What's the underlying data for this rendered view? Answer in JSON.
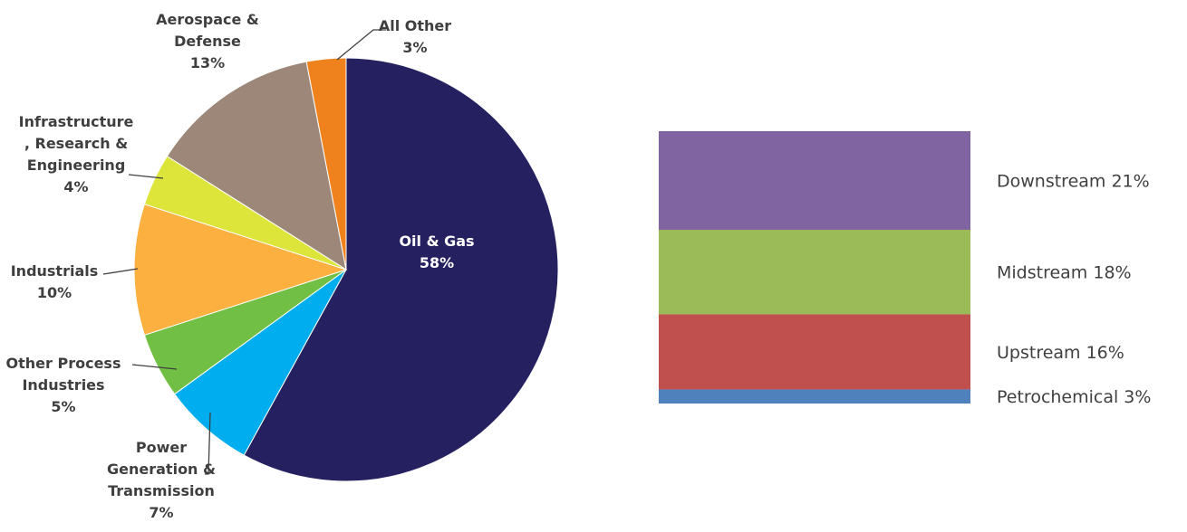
{
  "chart_data": [
    {
      "type": "pie",
      "slices": [
        {
          "name": "Oil & Gas",
          "value": 58,
          "label": "58%",
          "color": "#252060"
        },
        {
          "name": "Power Generation & Transmission",
          "value": 7,
          "label": "7%",
          "color": "#00aeef"
        },
        {
          "name": "Other Process Industries",
          "value": 5,
          "label": "5%",
          "color": "#71bf44"
        },
        {
          "name": "Industrials",
          "value": 10,
          "label": "10%",
          "color": "#fbb040"
        },
        {
          "name": "Infrastructure, Research & Engineering",
          "value": 4,
          "label": "4%",
          "color": "#dde43a"
        },
        {
          "name": "Aerospace & Defense",
          "value": 13,
          "label": "13%",
          "color": "#9c8778"
        },
        {
          "name": "All Other",
          "value": 3,
          "label": "3%",
          "color": "#f0821e"
        }
      ]
    },
    {
      "type": "bar",
      "stacked": true,
      "segments": [
        {
          "name": "Downstream",
          "value": 21,
          "label": "Downstream 21%",
          "color": "#8064a2"
        },
        {
          "name": "Midstream",
          "value": 18,
          "label": "Midstream 18%",
          "color": "#9bbb59"
        },
        {
          "name": "Upstream",
          "value": 16,
          "label": "Upstream 16%",
          "color": "#c0504d"
        },
        {
          "name": "Petrochemical",
          "value": 3,
          "label": "Petrochemical 3%",
          "color": "#4f81bd"
        }
      ]
    }
  ]
}
